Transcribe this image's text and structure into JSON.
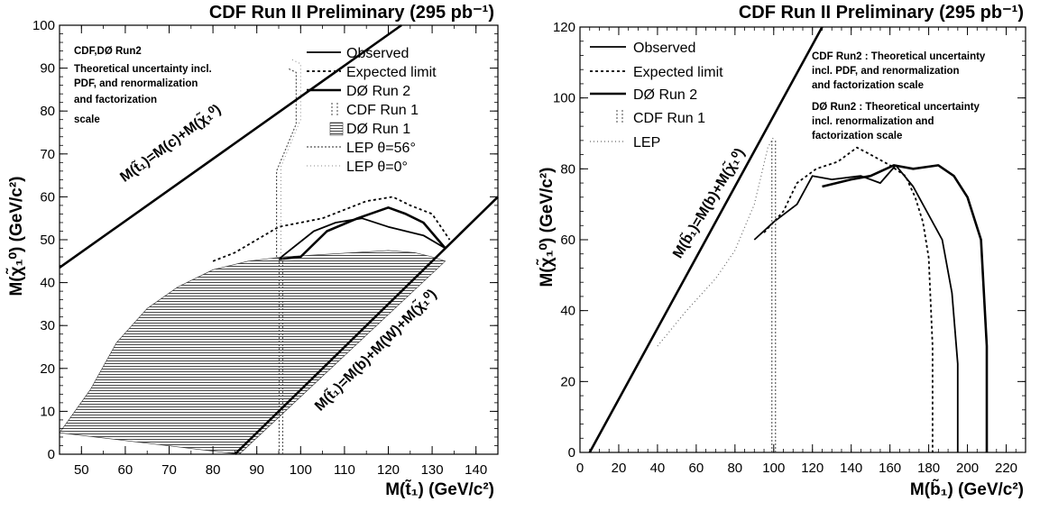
{
  "chart_data": [
    {
      "type": "line",
      "title": "CDF Run II Preliminary (295 pb⁻¹)",
      "xlabel": "M(t̃₁) (GeV/c²)",
      "ylabel": "M(χ̃₁⁰) (GeV/c²)",
      "xlim": [
        45,
        145
      ],
      "ylim": [
        0,
        100
      ],
      "xticks": [
        "50",
        "60",
        "70",
        "80",
        "90",
        "100",
        "110",
        "120",
        "130",
        "140"
      ],
      "yticks": [
        "0",
        "10",
        "20",
        "30",
        "40",
        "50",
        "60",
        "70",
        "80",
        "90",
        "100"
      ],
      "legend_position": "top-right",
      "legend": [
        "Observed",
        "Expected limit",
        "DØ Run 2",
        "CDF Run 1",
        "DØ Run 1",
        "LEP θ=56°",
        "LEP θ=0°"
      ],
      "notes": [
        "CDF,DØ Run2",
        "Theoretical uncertainty incl.",
        "PDF, and renormalization",
        "and factorization",
        "scale"
      ],
      "diagonal_labels": [
        "M(t̃₁)=M(c)+M(χ̃₁⁰)",
        "M(t̃₁)=M(b)+M(W)+M(χ̃₁⁰)"
      ],
      "kinematic_lines": [
        {
          "x": [
            45,
            123
          ],
          "y": [
            43.5,
            100
          ]
        },
        {
          "x": [
            85,
            145
          ],
          "y": [
            0,
            60
          ]
        }
      ],
      "series": [
        {
          "name": "Observed",
          "x": [
            95,
            103,
            108,
            114,
            120,
            124,
            128,
            133
          ],
          "y": [
            45.5,
            52,
            54,
            55,
            53,
            52,
            51,
            48
          ]
        },
        {
          "name": "Expected limit",
          "x": [
            80,
            85,
            90,
            95,
            100,
            105,
            110,
            115,
            121,
            125,
            130,
            134
          ],
          "y": [
            45,
            47,
            50,
            53,
            54,
            55,
            57,
            59,
            60,
            58,
            56,
            50
          ]
        },
        {
          "name": "DØ Run 2",
          "x": [
            95,
            100,
            106,
            113,
            120,
            124,
            128,
            133
          ],
          "y": [
            45.5,
            46,
            52,
            55,
            57.5,
            56,
            54,
            48
          ]
        },
        {
          "name": "CDF Run 1",
          "x": [
            95.5,
            95.5
          ],
          "y": [
            0,
            46
          ]
        },
        {
          "name": "DØ Run 1",
          "x": [
            45,
            52,
            58,
            65,
            72,
            80,
            88,
            96,
            104,
            112,
            120,
            126,
            130,
            133,
            86
          ],
          "y": [
            5,
            15,
            26,
            34,
            39,
            43,
            45,
            46,
            46.5,
            47,
            47.5,
            47,
            46,
            45,
            0
          ]
        },
        {
          "name": "LEP θ=56°",
          "x": [
            94.5,
            94.5,
            99,
            99,
            97
          ],
          "y": [
            46,
            66,
            77,
            89,
            90
          ]
        },
        {
          "name": "LEP θ=0°",
          "x": [
            95.5,
            95.5,
            100,
            100,
            98
          ],
          "y": [
            46,
            67,
            78,
            91,
            92
          ]
        }
      ]
    },
    {
      "type": "line",
      "title": "CDF Run II Preliminary (295 pb⁻¹)",
      "xlabel": "M(b̃₁) (GeV/c²)",
      "ylabel": "M(χ̃₁⁰) (GeV/c²)",
      "xlim": [
        0,
        230
      ],
      "ylim": [
        0,
        120
      ],
      "xticks": [
        "0",
        "20",
        "40",
        "60",
        "80",
        "100",
        "120",
        "140",
        "160",
        "180",
        "200",
        "220"
      ],
      "yticks": [
        "0",
        "20",
        "40",
        "60",
        "80",
        "100",
        "120"
      ],
      "legend_position": "top-left",
      "legend": [
        "Observed",
        "Expected limit",
        "DØ Run 2",
        "CDF Run 1",
        "LEP"
      ],
      "notes": [
        "CDF Run2 : Theoretical uncertainty",
        "incl. PDF, and renormalization",
        "and factorization scale",
        "DØ Run2 : Theoretical uncertainty",
        "incl. renormalization and",
        "factorization scale"
      ],
      "diagonal_labels": [
        "M(b̃₁)=M(b)+M(χ̃₁⁰)"
      ],
      "kinematic_lines": [
        {
          "x": [
            5,
            125
          ],
          "y": [
            0,
            120
          ]
        }
      ],
      "series": [
        {
          "name": "Observed",
          "x": [
            90,
            100,
            112,
            120,
            130,
            145,
            155,
            163,
            172,
            180,
            187,
            192,
            195,
            195
          ],
          "y": [
            60,
            65,
            70,
            78,
            77,
            78,
            76,
            81,
            75,
            67,
            60,
            45,
            25,
            0
          ]
        },
        {
          "name": "Expected limit",
          "x": [
            95,
            105,
            112,
            122,
            133,
            143,
            150,
            160,
            168,
            173,
            177,
            180,
            182,
            182
          ],
          "y": [
            62,
            68,
            76,
            80,
            82,
            86,
            84,
            81,
            78,
            72,
            65,
            55,
            30,
            0
          ]
        },
        {
          "name": "DØ Run 2",
          "x": [
            125,
            140,
            150,
            162,
            172,
            185,
            193,
            200,
            207,
            210,
            210
          ],
          "y": [
            75,
            77,
            78,
            81,
            80,
            81,
            78,
            72,
            60,
            30,
            0
          ]
        },
        {
          "name": "CDF Run 1",
          "x": [
            100,
            100
          ],
          "y": [
            0,
            88
          ]
        },
        {
          "name": "LEP",
          "x": [
            40,
            55,
            70,
            80,
            90,
            97,
            100
          ],
          "y": [
            30,
            40,
            49,
            57,
            70,
            86,
            89
          ]
        }
      ]
    }
  ]
}
